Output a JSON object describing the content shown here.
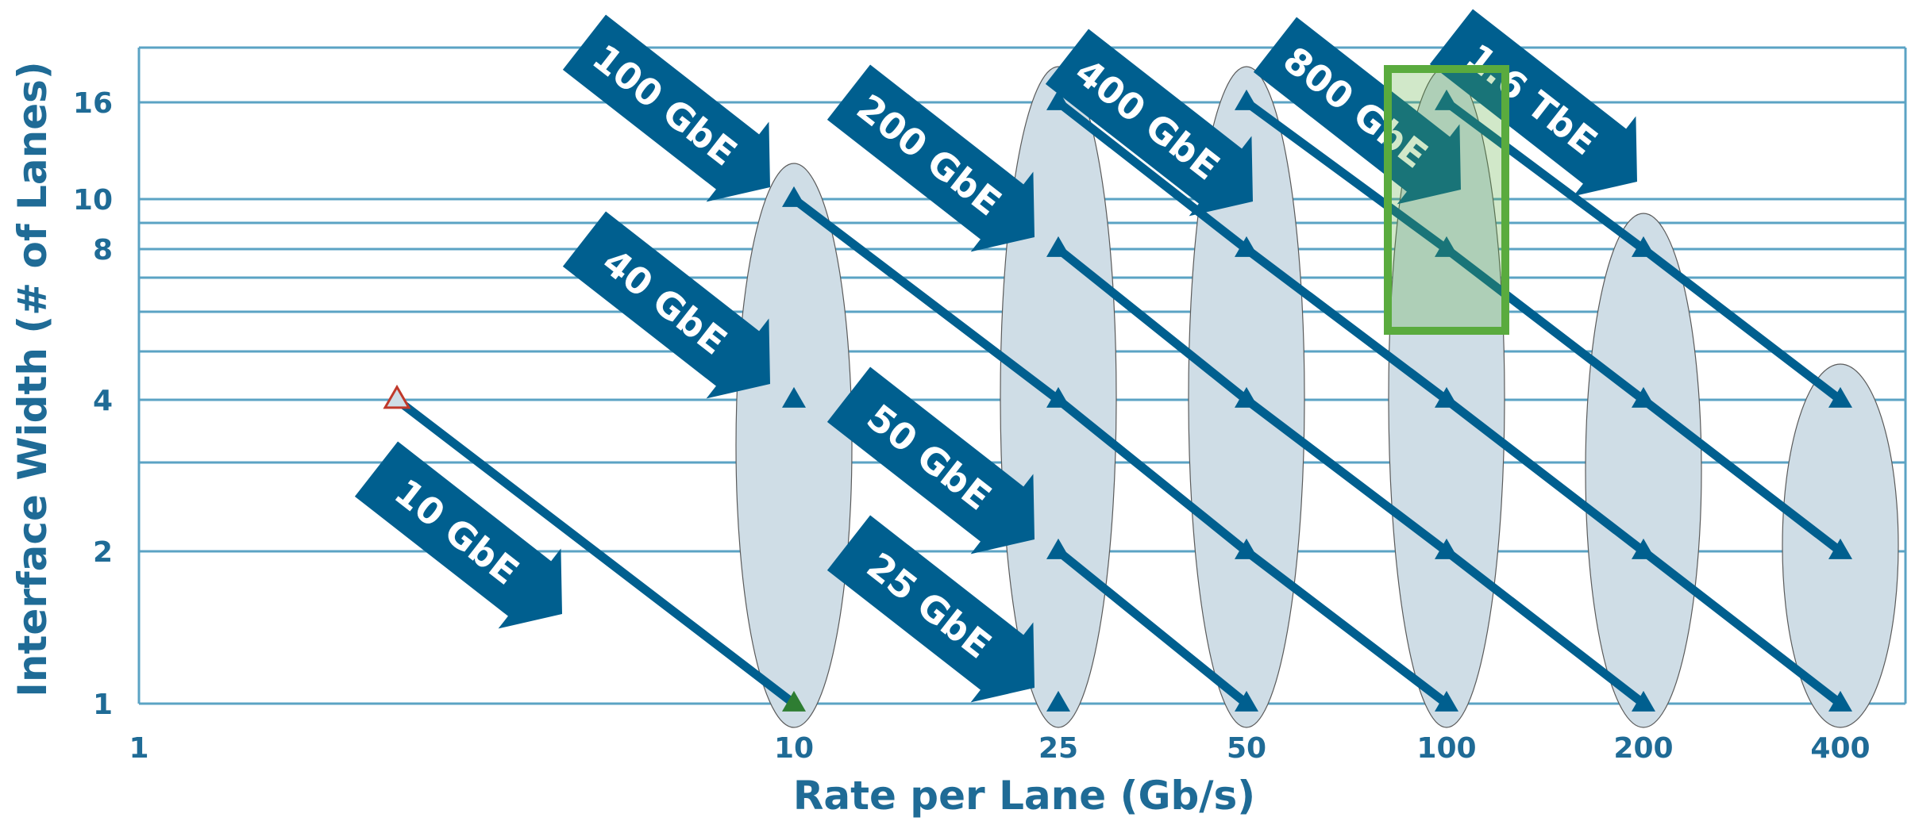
{
  "chart_data": {
    "type": "scatter",
    "title": "",
    "xlabel": "Rate per Lane (Gb/s)",
    "ylabel": "Interface Width (# of Lanes)",
    "x_scale": "log",
    "y_scale": "log",
    "xlim": [
      1,
      400
    ],
    "ylim": [
      1,
      16
    ],
    "xticks": [
      1,
      10,
      25,
      50,
      100,
      200,
      400
    ],
    "xtick_labels": [
      "1",
      "10",
      "25",
      "50",
      100,
      "200",
      "400"
    ],
    "yticks": [
      1,
      2,
      4,
      8,
      10,
      16
    ],
    "ytick_labels": [
      "1",
      "2",
      "4",
      "8",
      "10",
      "16"
    ],
    "y_gridlines": [
      1,
      2,
      3,
      4,
      5,
      6,
      7,
      8,
      9,
      10,
      16
    ],
    "grid": true,
    "series": [
      {
        "name": "10 GbE",
        "points": [
          [
            2.5,
            4
          ],
          [
            10,
            1
          ]
        ]
      },
      {
        "name": "25 GbE",
        "points": [
          [
            25,
            1
          ]
        ]
      },
      {
        "name": "40 GbE",
        "points": [
          [
            10,
            4
          ]
        ]
      },
      {
        "name": "50 GbE",
        "points": [
          [
            25,
            2
          ],
          [
            50,
            1
          ]
        ]
      },
      {
        "name": "100 GbE",
        "points": [
          [
            10,
            10
          ],
          [
            25,
            4
          ],
          [
            50,
            2
          ],
          [
            100,
            1
          ]
        ]
      },
      {
        "name": "200 GbE",
        "points": [
          [
            25,
            8
          ],
          [
            50,
            4
          ],
          [
            100,
            2
          ],
          [
            200,
            1
          ]
        ]
      },
      {
        "name": "400 GbE",
        "points": [
          [
            25,
            16
          ],
          [
            50,
            8
          ],
          [
            100,
            4
          ],
          [
            200,
            2
          ],
          [
            400,
            1
          ]
        ]
      },
      {
        "name": "800 GbE",
        "points": [
          [
            50,
            16
          ],
          [
            100,
            8
          ],
          [
            200,
            4
          ],
          [
            400,
            2
          ]
        ]
      },
      {
        "name": "1.6 TbE",
        "points": [
          [
            100,
            16
          ],
          [
            200,
            8
          ],
          [
            400,
            4
          ]
        ]
      }
    ],
    "highlight": {
      "x": 100,
      "y_range": [
        6,
        16
      ],
      "color": "#5aab3e"
    },
    "colors": {
      "primary": "#005f8f",
      "grid": "#5ba3c4",
      "axis_text": "#1f6b96",
      "ellipse_fill": "#cfdde6",
      "first_marker_outline": "#c0392b",
      "first_end_marker": "#2e7d32"
    }
  }
}
